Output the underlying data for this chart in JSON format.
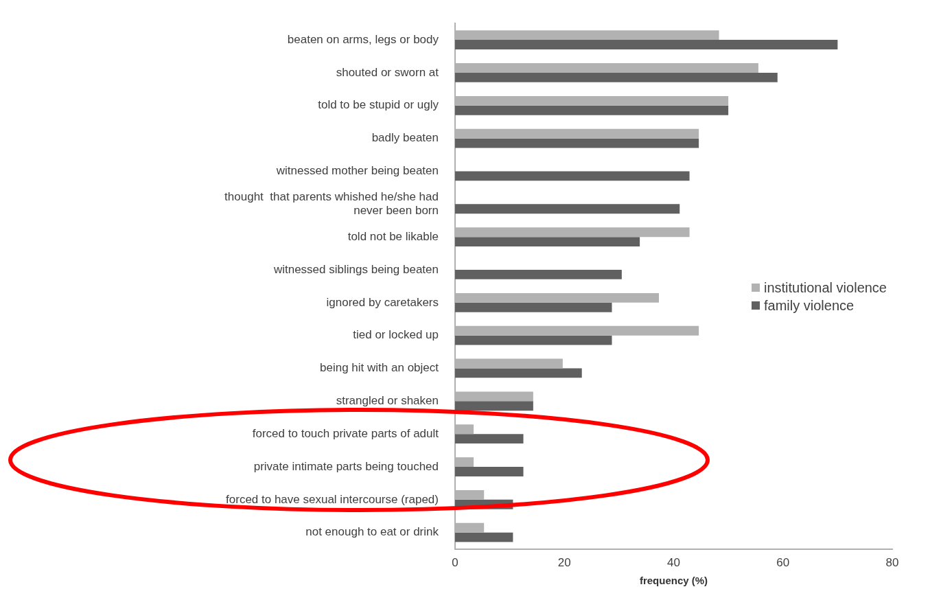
{
  "chart_data": {
    "type": "bar",
    "orientation": "horizontal",
    "xlabel": "frequency (%)",
    "categories": [
      "beaten on arms, legs or body",
      "shouted or sworn at",
      "told to be stupid or ugly",
      "badly beaten",
      "witnessed mother being beaten",
      "thought  that parents whished he/she had never been born",
      "told not be likable",
      "witnessed siblings being beaten",
      "ignored by caretakers",
      "tied or locked up",
      "being hit with an object",
      "strangled or shaken",
      "forced to touch private parts of adult",
      "private intimate parts being touched",
      "forced to have sexual intercourse (raped)",
      "not enough to eat or drink"
    ],
    "series": [
      {
        "name": "institutional violence",
        "color": "#b2b2b2",
        "values": [
          48.3,
          55.5,
          50.0,
          44.6,
          null,
          null,
          42.9,
          null,
          37.3,
          44.6,
          19.7,
          14.3,
          3.4,
          3.4,
          5.3,
          5.3
        ]
      },
      {
        "name": "family violence",
        "color": "#606060",
        "values": [
          70.0,
          59.0,
          50.0,
          44.6,
          42.9,
          41.1,
          33.8,
          30.5,
          28.7,
          28.7,
          23.2,
          14.3,
          12.5,
          12.5,
          10.6,
          10.6
        ]
      }
    ],
    "xlim": [
      0,
      80
    ],
    "xticks": [
      0,
      20,
      40,
      60,
      80
    ],
    "grid": false,
    "legend": "right"
  }
}
